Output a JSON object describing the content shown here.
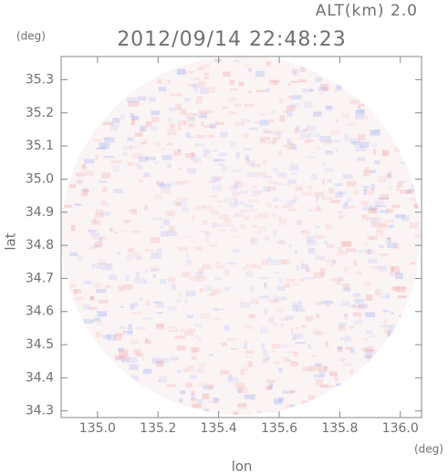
{
  "chart_data": {
    "type": "radar-map",
    "title": "2012/09/14 22:48:23",
    "altitude_label": "ALT(km) 2.0",
    "x_label": "lon",
    "y_label": "lat",
    "x_unit": "(deg)",
    "y_unit": "(deg)",
    "xlim": [
      134.88,
      136.07
    ],
    "ylim": [
      34.28,
      35.37
    ],
    "xticks": [
      {
        "value": 135.0,
        "label": "135.0"
      },
      135.2,
      135.4,
      135.6,
      135.8,
      {
        "value": 136.0,
        "label": "136.0"
      }
    ],
    "yticks": [
      34.3,
      34.4,
      34.5,
      34.6,
      34.7,
      34.8,
      34.9,
      {
        "value": 35.0,
        "label": "35.0"
      },
      35.1,
      35.2,
      35.3
    ]
  }
}
